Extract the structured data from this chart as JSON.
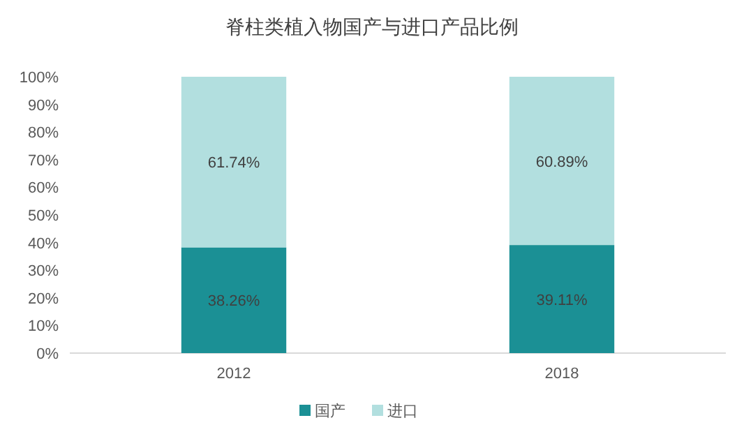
{
  "chart_data": {
    "type": "bar",
    "title": "脊柱类植入物国产与进口产品比例",
    "categories": [
      "2012",
      "2018"
    ],
    "stacked": true,
    "legend": "bottom",
    "ylim": [
      0,
      100
    ],
    "yticks": [
      {
        "value": 0,
        "label": "0%"
      },
      {
        "value": 10,
        "label": "10%"
      },
      {
        "value": 20,
        "label": "20%"
      },
      {
        "value": 30,
        "label": "30%"
      },
      {
        "value": 40,
        "label": "40%"
      },
      {
        "value": 50,
        "label": "50%"
      },
      {
        "value": 60,
        "label": "60%"
      },
      {
        "value": 70,
        "label": "70%"
      },
      {
        "value": 80,
        "label": "80%"
      },
      {
        "value": 90,
        "label": "90%"
      },
      {
        "value": 100,
        "label": "100%"
      }
    ],
    "series": [
      {
        "name": "国产",
        "color": "#1b9095",
        "values": [
          38.26,
          39.11
        ],
        "value_labels": [
          "38.26%",
          "39.11%"
        ]
      },
      {
        "name": "进口",
        "color": "#b2dfdf",
        "values": [
          61.74,
          60.89
        ],
        "value_labels": [
          "61.74%",
          "60.89%"
        ]
      }
    ]
  }
}
